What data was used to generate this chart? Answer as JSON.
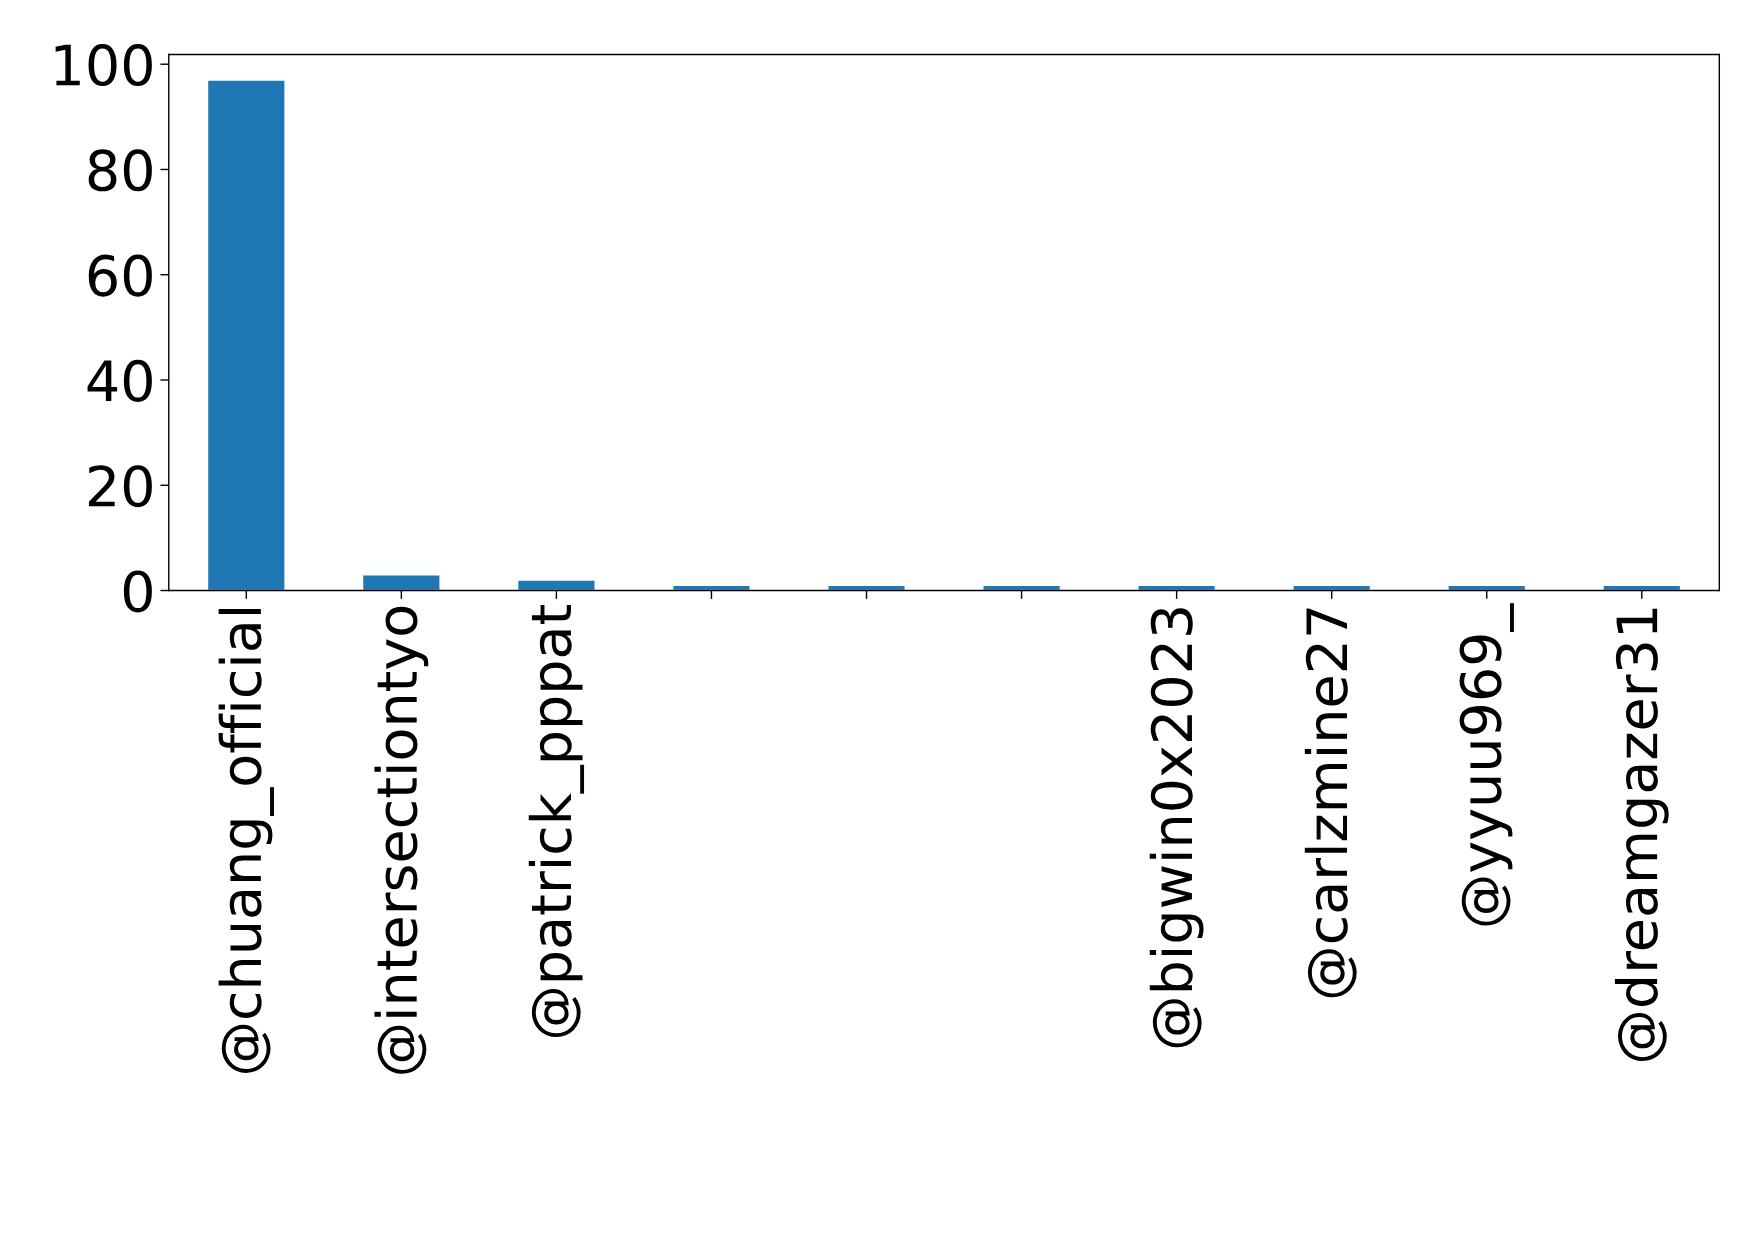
{
  "chart_data": {
    "type": "bar",
    "categories": [
      "@chuang_official",
      "@intersectiontyo",
      "@patrick_pppat",
      null,
      null,
      null,
      "@bigwin0x2023",
      "@carlzmine27",
      "@yyuu969_",
      "@dreamgazer31"
    ],
    "values": [
      97,
      3,
      2,
      1,
      1,
      1,
      1,
      1,
      1,
      1
    ],
    "color": "#1f77b4",
    "ylim": [
      0,
      101.85
    ],
    "yticks": [
      0,
      20,
      40,
      60,
      80,
      100
    ],
    "grid": false
  }
}
